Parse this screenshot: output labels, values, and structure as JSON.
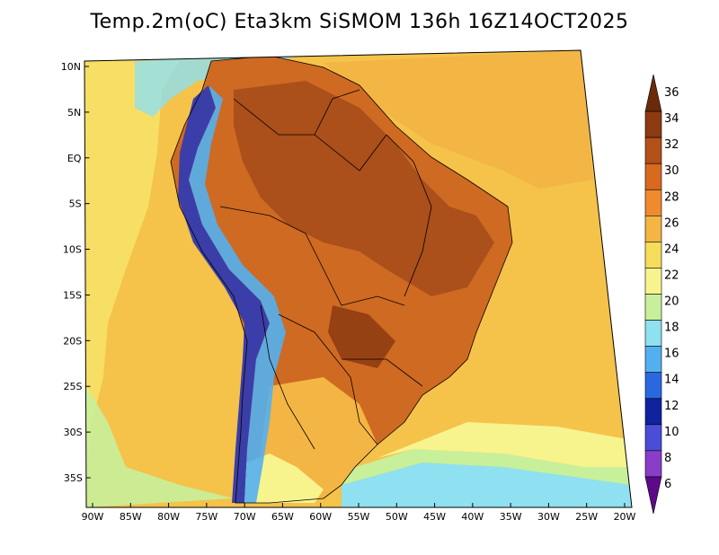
{
  "title": "Temp.2m(oC) Eta3km SiSMOM 136h 16Z14OCT2025",
  "map": {
    "lon_labels": [
      "90W",
      "85W",
      "80W",
      "75W",
      "70W",
      "65W",
      "60W",
      "55W",
      "50W",
      "45W",
      "40W",
      "35W",
      "30W",
      "25W",
      "20W"
    ],
    "lat_labels": [
      "10N",
      "5N",
      "EQ",
      "5S",
      "10S",
      "15S",
      "20S",
      "25S",
      "30S",
      "35S"
    ],
    "colorbar": {
      "labels": [
        "36",
        "34",
        "32",
        "30",
        "28",
        "26",
        "24",
        "22",
        "20",
        "18",
        "16",
        "14",
        "12",
        "10",
        "8",
        "6"
      ],
      "colors": [
        "#6b2a0a",
        "#8c3a12",
        "#b4501a",
        "#d8691f",
        "#f08a2e",
        "#f3b544",
        "#f5dd5c",
        "#f7f48e",
        "#c8f09a",
        "#8fe0f0",
        "#53b0f0",
        "#2a68e0",
        "#10229e",
        "#4b4cd8",
        "#8a3ec8",
        "#5c0a8a"
      ]
    },
    "ocean_color": "#f5c24a",
    "land_color": "#cf6a22",
    "hot_color": "#a44a1a",
    "andes_color": "#3b3ea8"
  }
}
